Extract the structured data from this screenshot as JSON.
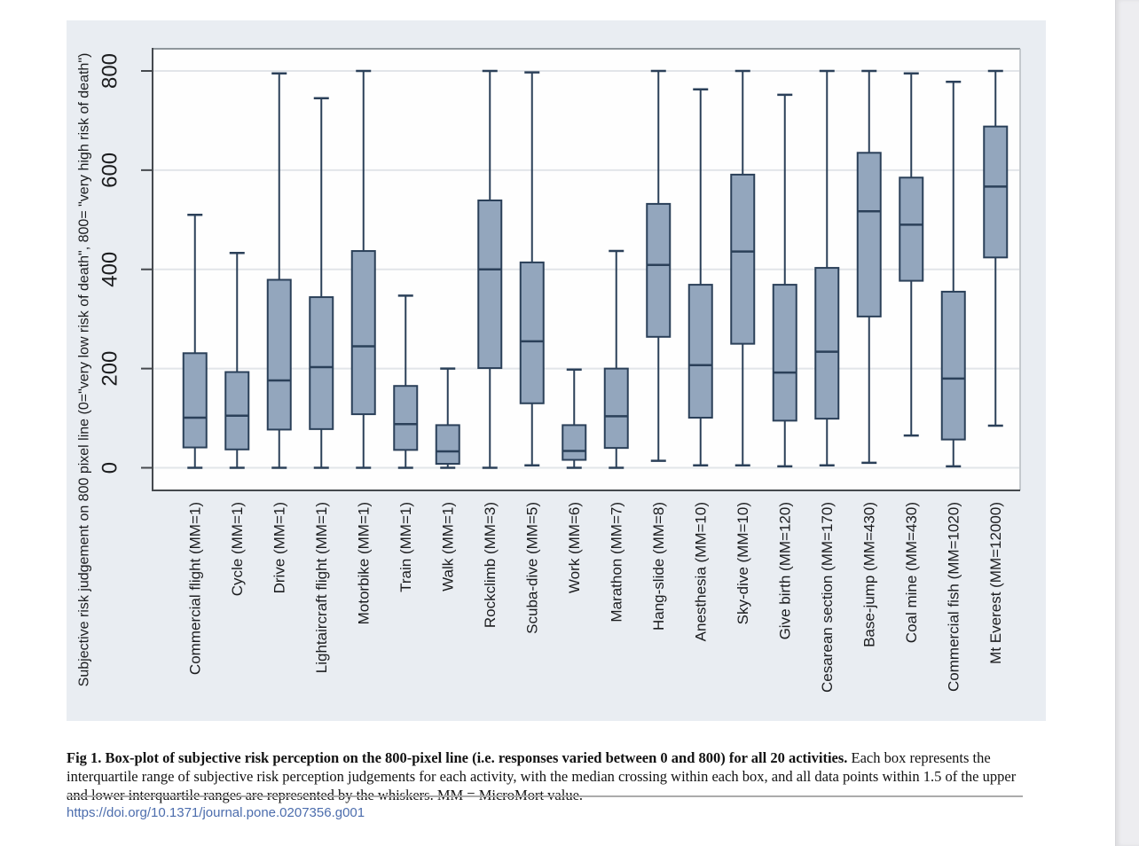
{
  "colors": {
    "figure_bg": "#e9edf2",
    "plot_bg": "#fefefe",
    "grid": "#e2e5e9",
    "box_fill": "#93a6bd",
    "box_stroke": "#2b4059",
    "axis": "#45494e",
    "frame_top": "#8f969c",
    "frame_right": "#b6bbc0",
    "text": "#1b1c1e",
    "rule": "#ababab",
    "link": "#4c6dad",
    "page_edge": "#ededf0"
  },
  "chart_data": {
    "type": "boxplot",
    "title": "",
    "ylabel": "Subjective risk judgement on 800 pixel line (0=\"very low risk of death\", 800= \"very high risk of death\")",
    "xlabel": "",
    "ylim": [
      0,
      800
    ],
    "yticks": [
      0,
      200,
      400,
      600,
      800
    ],
    "grid": true,
    "categories": [
      "Commercial flight (MM=1)",
      "Cycle (MM=1)",
      "Drive (MM=1)",
      "Lightaircraft flight (MM=1)",
      "Motorbike (MM=1)",
      "Train (MM=1)",
      "Walk (MM=1)",
      "Rockclimb (MM=3)",
      "Scuba-dive (MM=5)",
      "Work (MM=6)",
      "Marathon (MM=7)",
      "Hang-slide (MM=8)",
      "Anesthesia (MM=10)",
      "Sky-dive (MM=10)",
      "Give birth (MM=120)",
      "Cesarean section (MM=170)",
      "Base-jump (MM=430)",
      "Coal mine (MM=430)",
      "Commercial fish (MM=1020)",
      "Mt Everest (MM=12000)"
    ],
    "series": [
      {
        "name": "Commercial flight (MM=1)",
        "whisker_low": 0,
        "q1": 41,
        "median": 101,
        "q3": 231,
        "whisker_high": 510
      },
      {
        "name": "Cycle (MM=1)",
        "whisker_low": 0,
        "q1": 37,
        "median": 105,
        "q3": 193,
        "whisker_high": 433
      },
      {
        "name": "Drive (MM=1)",
        "whisker_low": 0,
        "q1": 77,
        "median": 176,
        "q3": 379,
        "whisker_high": 795
      },
      {
        "name": "Lightaircraft flight (MM=1)",
        "whisker_low": 0,
        "q1": 78,
        "median": 203,
        "q3": 344,
        "whisker_high": 745
      },
      {
        "name": "Motorbike (MM=1)",
        "whisker_low": 0,
        "q1": 108,
        "median": 245,
        "q3": 437,
        "whisker_high": 800
      },
      {
        "name": "Train (MM=1)",
        "whisker_low": 0,
        "q1": 36,
        "median": 88,
        "q3": 165,
        "whisker_high": 347
      },
      {
        "name": "Walk (MM=1)",
        "whisker_low": 0,
        "q1": 8,
        "median": 33,
        "q3": 86,
        "whisker_high": 200
      },
      {
        "name": "Rockclimb (MM=3)",
        "whisker_low": 0,
        "q1": 201,
        "median": 400,
        "q3": 539,
        "whisker_high": 800
      },
      {
        "name": "Scuba-dive (MM=5)",
        "whisker_low": 5,
        "q1": 130,
        "median": 255,
        "q3": 414,
        "whisker_high": 797
      },
      {
        "name": "Work (MM=6)",
        "whisker_low": 0,
        "q1": 16,
        "median": 34,
        "q3": 86,
        "whisker_high": 198
      },
      {
        "name": "Marathon (MM=7)",
        "whisker_low": 0,
        "q1": 40,
        "median": 104,
        "q3": 200,
        "whisker_high": 437
      },
      {
        "name": "Hang-slide (MM=8)",
        "whisker_low": 14,
        "q1": 264,
        "median": 409,
        "q3": 532,
        "whisker_high": 800
      },
      {
        "name": "Anesthesia (MM=10)",
        "whisker_low": 5,
        "q1": 101,
        "median": 207,
        "q3": 369,
        "whisker_high": 763
      },
      {
        "name": "Sky-dive (MM=10)",
        "whisker_low": 5,
        "q1": 250,
        "median": 436,
        "q3": 591,
        "whisker_high": 800
      },
      {
        "name": "Give birth (MM=120)",
        "whisker_low": 3,
        "q1": 95,
        "median": 192,
        "q3": 369,
        "whisker_high": 752
      },
      {
        "name": "Cesarean section (MM=170)",
        "whisker_low": 5,
        "q1": 99,
        "median": 234,
        "q3": 403,
        "whisker_high": 800
      },
      {
        "name": "Base-jump (MM=430)",
        "whisker_low": 10,
        "q1": 305,
        "median": 517,
        "q3": 635,
        "whisker_high": 800
      },
      {
        "name": "Coal mine (MM=430)",
        "whisker_low": 65,
        "q1": 377,
        "median": 490,
        "q3": 585,
        "whisker_high": 795
      },
      {
        "name": "Commercial fish (MM=1020)",
        "whisker_low": 3,
        "q1": 57,
        "median": 180,
        "q3": 355,
        "whisker_high": 778
      },
      {
        "name": "Mt Everest (MM=12000)",
        "whisker_low": 85,
        "q1": 424,
        "median": 567,
        "q3": 688,
        "whisker_high": 800
      }
    ]
  },
  "caption": {
    "bold": "Fig 1. Box-plot of subjective risk perception on the 800-pixel line (i.e. responses varied between 0 and 800) for all 20 activities.",
    "regular": " Each box represents the interquartile range of subjective risk perception judgements for each activity, with the median crossing within each box, and all data points within 1.5 of the upper and lower interquartile ranges are represented by the whiskers. MM = MicroMort value."
  },
  "link": {
    "doi_url": "https://doi.org/10.1371/journal.pone.0207356.g001"
  }
}
